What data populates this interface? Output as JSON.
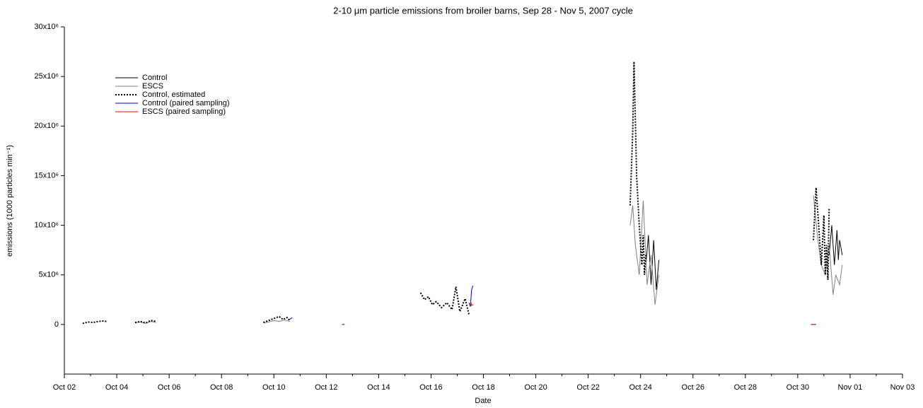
{
  "chart_data": {
    "type": "line",
    "title": "2-10 μm particle emissions from broiler barns, Sep 28 - Nov 5, 2007 cycle",
    "xlabel": "Date",
    "ylabel": "emissions (1000 particles min⁻¹)",
    "xlim": [
      2,
      34
    ],
    "xticks": [
      {
        "value": 2,
        "label": "Oct 02"
      },
      {
        "value": 4,
        "label": "Oct 04"
      },
      {
        "value": 6,
        "label": "Oct 06"
      },
      {
        "value": 8,
        "label": "Oct 08"
      },
      {
        "value": 10,
        "label": "Oct 10"
      },
      {
        "value": 12,
        "label": "Oct 12"
      },
      {
        "value": 14,
        "label": "Oct 14"
      },
      {
        "value": 16,
        "label": "Oct 16"
      },
      {
        "value": 18,
        "label": "Oct 18"
      },
      {
        "value": 20,
        "label": "Oct 20"
      },
      {
        "value": 22,
        "label": "Oct 22"
      },
      {
        "value": 24,
        "label": "Oct 24"
      },
      {
        "value": 26,
        "label": "Oct 26"
      },
      {
        "value": 28,
        "label": "Oct 28"
      },
      {
        "value": 30,
        "label": "Oct 30"
      },
      {
        "value": 32,
        "label": "Nov 01"
      },
      {
        "value": 34,
        "label": "Nov 03"
      }
    ],
    "xminorticks": [
      3,
      5,
      7,
      9,
      11,
      13,
      15,
      17,
      19,
      21,
      23,
      25,
      27,
      29,
      31,
      33
    ],
    "ylim": [
      -5000000,
      30000000
    ],
    "yticks": [
      0,
      {
        "value": 5000000,
        "label": "5x10⁶"
      },
      {
        "value": 10000000,
        "label": "10x10⁶"
      },
      {
        "value": 15000000,
        "label": "15x10⁶"
      },
      {
        "value": 20000000,
        "label": "20x10⁶"
      },
      {
        "value": 25000000,
        "label": "25x10⁶"
      },
      {
        "value": 30000000,
        "label": "30x10⁶"
      }
    ],
    "series": [
      {
        "name": "Control",
        "color": "#000000",
        "style": "solid",
        "x": [
          24.2,
          24.3,
          24.4,
          24.5,
          24.6,
          24.7,
          null,
          31.2,
          31.3,
          31.4,
          31.5,
          31.55,
          31.6,
          31.7
        ],
        "values": [
          6000000,
          9000000,
          4000000,
          8500000,
          3500000,
          6500000,
          null,
          7000000,
          10000000,
          6000000,
          9500000,
          6500000,
          8500000,
          7000000
        ]
      },
      {
        "name": "ESCS",
        "color": "#808080",
        "style": "solid",
        "x": [
          4.7,
          4.9,
          5.1,
          5.3,
          5.5,
          null,
          9.6,
          9.8,
          10,
          10.2,
          10.4,
          10.6,
          null,
          23.6,
          23.7,
          23.8,
          23.95,
          24.1,
          24.25,
          24.4,
          24.55,
          24.7,
          null,
          30.6,
          30.75,
          30.9,
          31.05,
          31.2,
          31.35,
          31.45,
          31.6,
          31.7
        ],
        "values": [
          150000,
          250000,
          100000,
          300000,
          200000,
          null,
          150000,
          250000,
          400000,
          300000,
          450000,
          300000,
          null,
          10000000,
          12000000,
          8000000,
          5000000,
          12500000,
          4000000,
          7000000,
          2000000,
          5000000,
          null,
          13000000,
          9000000,
          6000000,
          5000000,
          8000000,
          3000000,
          5000000,
          4000000,
          6000000
        ]
      },
      {
        "name": "Control, estimated",
        "color": "#000000",
        "style": "dotted",
        "x": [
          2.7,
          2.9,
          3.1,
          3.3,
          3.5,
          3.6,
          null,
          4.7,
          4.9,
          5.1,
          5.3,
          5.5,
          null,
          9.6,
          9.8,
          10,
          10.2,
          10.35,
          10.5,
          10.6,
          null,
          15.6,
          15.75,
          15.9,
          16.05,
          16.2,
          16.4,
          16.6,
          16.8,
          16.95,
          17.1,
          17.3,
          17.45,
          null,
          23.6,
          23.7,
          23.75,
          23.85,
          23.95,
          24.05,
          24.1,
          24.15,
          24.2,
          null,
          30.6,
          30.7,
          30.8,
          30.9,
          31.0,
          31.05,
          31.1,
          31.15,
          31.2
        ],
        "values": [
          100000,
          250000,
          200000,
          300000,
          350000,
          300000,
          null,
          200000,
          300000,
          150000,
          400000,
          300000,
          null,
          200000,
          400000,
          600000,
          800000,
          500000,
          700000,
          400000,
          null,
          3200000,
          2500000,
          2800000,
          2000000,
          2300000,
          1700000,
          2200000,
          1500000,
          3800000,
          1300000,
          2600000,
          1000000,
          null,
          12000000,
          19500000,
          26500000,
          15000000,
          10000000,
          6000000,
          9000000,
          5000000,
          7000000,
          null,
          8500000,
          13800000,
          10000000,
          6000000,
          11000000,
          5000000,
          8000000,
          4500000,
          11700000
        ]
      },
      {
        "name": "Control (paired sampling)",
        "color": "#0000cc",
        "style": "solid",
        "x": [
          10.6,
          10.7,
          null,
          12.6,
          12.7,
          null,
          17.45,
          17.5,
          17.55,
          17.6,
          null,
          30.5,
          30.7
        ],
        "values": [
          500000,
          700000,
          null,
          0,
          0,
          null,
          2200000,
          1800000,
          3500000,
          3900000,
          null,
          0,
          0
        ]
      },
      {
        "name": "ESCS (paired sampling)",
        "color": "#ff0000",
        "style": "solid",
        "x": [
          17.5,
          17.55,
          17.6,
          null,
          12.62,
          12.68,
          null,
          30.55,
          30.65
        ],
        "values": [
          2500000,
          1900000,
          2000000,
          null,
          0,
          0,
          null,
          0,
          0
        ]
      }
    ]
  }
}
